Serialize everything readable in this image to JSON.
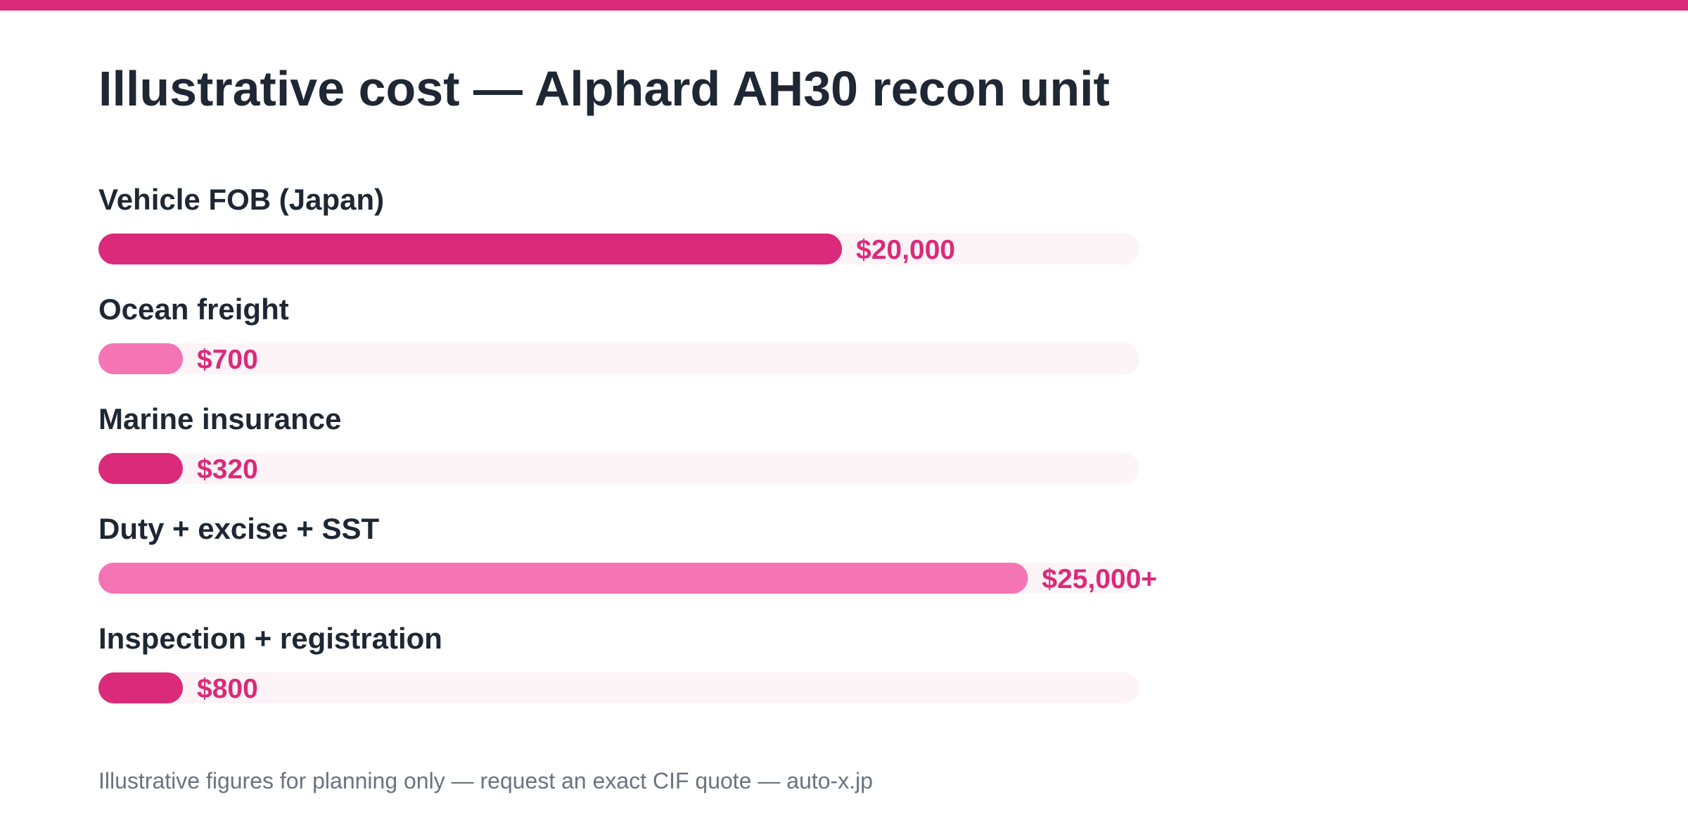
{
  "colors": {
    "accent": "#db2a79",
    "accent_light": "#f474b4",
    "track": "#fdf4f7",
    "title_text": "#1e2733",
    "footer_text": "#6b7280",
    "background": "#ffffff"
  },
  "title": "Illustrative cost — Alphard AH30 recon unit",
  "footer": "Illustrative figures for planning only — request an exact CIF quote — auto-x.jp",
  "chart_data": {
    "type": "bar",
    "orientation": "horizontal",
    "title": "Illustrative cost — Alphard AH30 recon unit",
    "xlabel": "",
    "ylabel": "",
    "grid": false,
    "legend": "none",
    "xlim": [
      0,
      28000
    ],
    "categories": [
      "Vehicle FOB (Japan)",
      "Ocean freight",
      "Marine insurance",
      "Duty + excise + SST",
      "Inspection + registration"
    ],
    "values": [
      20000,
      700,
      320,
      25000,
      800
    ],
    "value_labels": [
      "$20,000",
      "$700",
      "$320",
      "$25,000+",
      "$800"
    ],
    "bar_colors": [
      "#db2a79",
      "#f474b4",
      "#db2a79",
      "#f474b4",
      "#db2a79"
    ]
  }
}
